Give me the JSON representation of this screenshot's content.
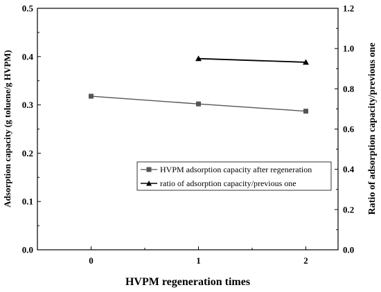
{
  "chart_data": {
    "type": "line",
    "xlabel": "HVPM regeneration times",
    "ylabel": "Adsorption capacity (g toluene/g HVPM)",
    "y2label": "Ratio of adsorption capacity/previous one",
    "xticks": [
      "0",
      "1",
      "2"
    ],
    "xlim": [
      -0.5,
      2.3
    ],
    "ylim": [
      0,
      0.5
    ],
    "y2lim": [
      0,
      1.2
    ],
    "yticks": [
      "0.0",
      "0.1",
      "0.2",
      "0.3",
      "0.4",
      "0.5"
    ],
    "y2ticks": [
      "0.0",
      "0.2",
      "0.4",
      "0.6",
      "0.8",
      "1.0",
      "1.2"
    ],
    "grid": false,
    "legend_position": "center-right",
    "series": [
      {
        "name": "HVPM adsorption capacity after regeneration",
        "axis": "left",
        "marker": "square",
        "color": "#555555",
        "x": [
          0,
          1,
          2
        ],
        "y": [
          0.318,
          0.302,
          0.287
        ]
      },
      {
        "name": "ratio of adsorption capacity/previous one",
        "axis": "right",
        "marker": "triangle",
        "color": "#000000",
        "x": [
          1,
          2
        ],
        "y": [
          0.95,
          0.932
        ]
      }
    ]
  }
}
